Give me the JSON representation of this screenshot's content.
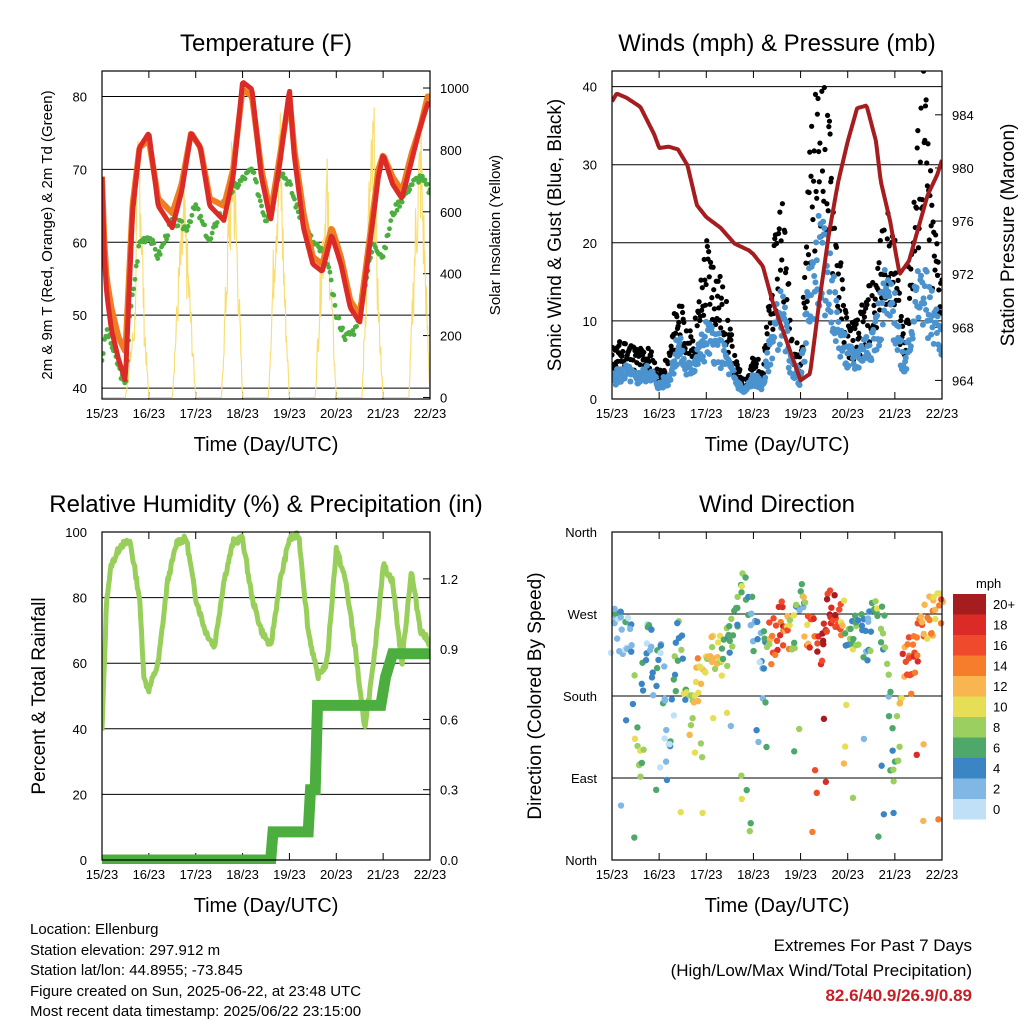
{
  "chart_data": [
    {
      "type": "line",
      "title": "Temperature (F)",
      "xlabel": "Time (Day/UTC)",
      "ylabel": "2m & 9m T (Red, Orange) & 2m Td (Green)",
      "y2label": "Solar Insolation (Yellow)",
      "x_ticks": [
        "15/23",
        "16/23",
        "17/23",
        "18/23",
        "19/23",
        "20/23",
        "21/23",
        "22/23"
      ],
      "ylim": [
        38.5,
        83.5
      ],
      "y_ticks": [
        40,
        50,
        60,
        70,
        80
      ],
      "y2lim": [
        -5,
        1055
      ],
      "y2_ticks": [
        0,
        200,
        400,
        600,
        800,
        1000
      ],
      "grid": true,
      "colors": {
        "t2m": "#dc2a27",
        "t9m": "#ef7d22",
        "td": "#4cae3e",
        "solar": "#f9dd6e"
      },
      "series": [
        {
          "key": "t9m",
          "x": [
            0,
            0.05,
            0.1,
            0.2,
            0.35,
            0.5,
            0.65,
            0.8,
            1,
            1.2,
            1.5,
            1.7,
            1.9,
            2.1,
            2.3,
            2.6,
            2.8,
            3,
            3.2,
            3.4,
            3.6,
            3.8,
            4,
            4.1,
            4.3,
            4.5,
            4.7,
            4.9,
            5.1,
            5.3,
            5.5,
            5.7,
            5.9,
            6,
            6.2,
            6.4,
            6.6,
            6.8,
            6.95,
            7
          ],
          "y": [
            69,
            60,
            55,
            51,
            47,
            45,
            65,
            73,
            74,
            66,
            64,
            68,
            75,
            73,
            66,
            65,
            70,
            81,
            80,
            70,
            64,
            72,
            80,
            73,
            64,
            58,
            57,
            62,
            58,
            52,
            50,
            60,
            70,
            72,
            69,
            67,
            72,
            76,
            80,
            80
          ]
        },
        {
          "key": "t2m",
          "x": [
            0,
            0.05,
            0.1,
            0.2,
            0.35,
            0.5,
            0.65,
            0.8,
            1,
            1.2,
            1.5,
            1.7,
            1.9,
            2.1,
            2.3,
            2.6,
            2.8,
            3,
            3.2,
            3.4,
            3.6,
            3.8,
            4,
            4.1,
            4.3,
            4.5,
            4.7,
            4.9,
            5.1,
            5.3,
            5.5,
            5.7,
            5.9,
            6,
            6.2,
            6.4,
            6.6,
            6.8,
            6.95,
            7
          ],
          "y": [
            69,
            58,
            53,
            48,
            44,
            41,
            64,
            73,
            75,
            65,
            62,
            67,
            75,
            73,
            65,
            63,
            69,
            82,
            81,
            69,
            63,
            71,
            81,
            72,
            62,
            57,
            56,
            61,
            57,
            51,
            49,
            59,
            69,
            72,
            68,
            66,
            71,
            76,
            79,
            79
          ]
        },
        {
          "key": "td",
          "x": [
            0,
            0.1,
            0.3,
            0.5,
            0.6,
            0.8,
            1,
            1.2,
            1.5,
            1.8,
            2,
            2.3,
            2.6,
            2.9,
            3.2,
            3.5,
            3.8,
            4,
            4.2,
            4.5,
            4.8,
            5,
            5.2,
            5.4,
            5.6,
            5.8,
            6,
            6.2,
            6.4,
            6.6,
            6.8,
            7
          ],
          "y": [
            44,
            48,
            44,
            40,
            50,
            60,
            61,
            58,
            63,
            62,
            65,
            60,
            66,
            68,
            70,
            63,
            70,
            68,
            64,
            60,
            58,
            50,
            47,
            48,
            54,
            60,
            58,
            64,
            66,
            68,
            69,
            67
          ]
        },
        {
          "key": "solar",
          "x": [
            0,
            0.2,
            0.5,
            0.7,
            0.75,
            0.8,
            0.9,
            1,
            1.3,
            1.5,
            1.65,
            1.75,
            1.85,
            2,
            2.3,
            2.55,
            2.7,
            2.8,
            2.9,
            3,
            3.3,
            3.55,
            3.7,
            3.8,
            3.9,
            4,
            4.3,
            4.55,
            4.7,
            4.8,
            4.9,
            5,
            5.3,
            5.55,
            5.7,
            5.8,
            5.9,
            6,
            6.3,
            6.55,
            6.7,
            6.8,
            6.9,
            7
          ],
          "y": [
            0,
            0,
            0,
            300,
            800,
            1000,
            300,
            0,
            0,
            0,
            500,
            700,
            450,
            0,
            0,
            0,
            650,
            950,
            500,
            0,
            0,
            0,
            700,
            1000,
            400,
            0,
            0,
            0,
            600,
            820,
            380,
            0,
            0,
            0,
            750,
            1000,
            350,
            0,
            0,
            0,
            700,
            950,
            500,
            0
          ]
        }
      ]
    },
    {
      "type": "scatter",
      "title": "Winds (mph) & Pressure (mb)",
      "xlabel": "Time (Day/UTC)",
      "ylabel": "Sonic Wind & Gust (Blue, Black)",
      "y2label": "Station Pressure (Maroon)",
      "x_ticks": [
        "15/23",
        "16/23",
        "17/23",
        "18/23",
        "19/23",
        "20/23",
        "21/23",
        "22/23"
      ],
      "ylim": [
        0,
        42
      ],
      "y_ticks": [
        0,
        10,
        20,
        30,
        40
      ],
      "y2lim": [
        962.6,
        987.3
      ],
      "y2_ticks": [
        964,
        968,
        972,
        976,
        980,
        984
      ],
      "grid": true,
      "colors": {
        "wind": "#4b93ce",
        "gust": "#000000",
        "pressure": "#a51d1f"
      },
      "series": [
        {
          "key": "wind",
          "x": [
            0,
            0.3,
            0.5,
            0.8,
            1,
            1.2,
            1.4,
            1.6,
            1.8,
            2,
            2.2,
            2.4,
            2.6,
            2.8,
            3,
            3.2,
            3.4,
            3.6,
            3.8,
            4,
            4.2,
            4.4,
            4.6,
            4.8,
            5,
            5.2,
            5.4,
            5.6,
            5.8,
            6,
            6.2,
            6.4,
            6.6,
            6.8,
            7
          ],
          "y": [
            3,
            4,
            3,
            4,
            2,
            3,
            8,
            4,
            6,
            9,
            8,
            6,
            3,
            1,
            3,
            2,
            9,
            13,
            5,
            3,
            16,
            21,
            18,
            10,
            6,
            6,
            8,
            10,
            15,
            12,
            5,
            13,
            16,
            12,
            9
          ]
        },
        {
          "key": "gust",
          "x": [
            0,
            0.3,
            0.5,
            0.8,
            1,
            1.2,
            1.4,
            1.6,
            1.8,
            2,
            2.2,
            2.4,
            2.6,
            2.8,
            3,
            3.2,
            3.4,
            3.6,
            3.8,
            4,
            4.2,
            4.4,
            4.6,
            4.8,
            5,
            5.2,
            5.4,
            5.6,
            5.8,
            6,
            6.2,
            6.4,
            6.6,
            6.8,
            7
          ],
          "y": [
            6,
            7,
            6,
            6,
            3,
            5,
            13,
            7,
            10,
            19,
            16,
            12,
            5,
            2,
            5,
            4,
            15,
            26,
            9,
            5,
            30,
            38,
            33,
            18,
            9,
            9,
            12,
            15,
            22,
            18,
            8,
            24,
            40,
            22,
            16
          ]
        },
        {
          "key": "pressure",
          "x": [
            0,
            0.1,
            0.3,
            0.6,
            0.9,
            1,
            1.2,
            1.4,
            1.6,
            1.8,
            2,
            2.3,
            2.6,
            2.9,
            3,
            3.2,
            3.4,
            3.6,
            3.8,
            4,
            4.2,
            4.4,
            4.6,
            4.8,
            5,
            5.2,
            5.4,
            5.6,
            5.7,
            5.9,
            6,
            6.1,
            6.3,
            6.5,
            6.7,
            6.9,
            7
          ],
          "y": [
            985,
            985.6,
            985.3,
            984.6,
            982.5,
            981.5,
            981.6,
            981.4,
            980.2,
            977.2,
            976.3,
            975.5,
            974.3,
            973.8,
            973.5,
            972.6,
            970,
            968,
            966,
            964,
            964.5,
            970,
            975,
            979,
            982,
            984.5,
            984.7,
            982,
            979,
            976,
            974,
            972,
            973,
            975.5,
            978,
            979.5,
            980.6
          ]
        }
      ]
    },
    {
      "type": "line",
      "title": "Relative Humidity (%) & Precipitation (in)",
      "xlabel": "Time (Day/UTC)",
      "ylabel": "Percent & Total Rainfall",
      "x_ticks": [
        "15/23",
        "16/23",
        "17/23",
        "18/23",
        "19/23",
        "20/23",
        "21/23",
        "22/23"
      ],
      "ylim": [
        0,
        100
      ],
      "y_ticks": [
        0,
        20,
        40,
        60,
        80,
        100
      ],
      "y2lim": [
        0,
        1.4
      ],
      "y2_ticks": [
        "0.0",
        "0.3",
        "0.6",
        "0.9",
        "1.2"
      ],
      "grid": true,
      "colors": {
        "rh": "#98cf5b",
        "precip": "#4cae3e"
      },
      "series": [
        {
          "key": "rh",
          "x": [
            0,
            0.1,
            0.2,
            0.4,
            0.6,
            0.8,
            0.9,
            1,
            1.2,
            1.4,
            1.6,
            1.8,
            2,
            2.2,
            2.4,
            2.6,
            2.8,
            3,
            3.2,
            3.4,
            3.6,
            3.8,
            4,
            4.2,
            4.4,
            4.6,
            4.8,
            5,
            5.2,
            5.4,
            5.6,
            5.8,
            6,
            6.2,
            6.4,
            6.6,
            6.8,
            7
          ],
          "y": [
            39,
            80,
            90,
            96,
            97,
            80,
            55,
            52,
            60,
            85,
            97,
            98,
            80,
            70,
            65,
            85,
            97,
            98,
            80,
            70,
            65,
            85,
            98,
            99,
            70,
            56,
            60,
            95,
            85,
            65,
            40,
            60,
            90,
            85,
            60,
            88,
            70,
            66
          ]
        },
        {
          "key": "precip",
          "x": [
            0,
            3.6,
            3.65,
            4.4,
            4.45,
            4.55,
            4.6,
            5.3,
            5.4,
            5.95,
            6.05,
            6.2,
            7
          ],
          "y": [
            0,
            0,
            0.12,
            0.12,
            0.3,
            0.3,
            0.66,
            0.66,
            0.66,
            0.66,
            0.78,
            0.88,
            0.88
          ]
        }
      ]
    },
    {
      "type": "scatter",
      "title": "Wind Direction",
      "xlabel": "Time (Day/UTC)",
      "ylabel": "Direction (Colored By Speed)",
      "x_ticks": [
        "15/23",
        "16/23",
        "17/23",
        "18/23",
        "19/23",
        "20/23",
        "21/23",
        "22/23"
      ],
      "y_tick_labels": [
        "North",
        "East",
        "South",
        "West",
        "North"
      ],
      "ylim": [
        0,
        360
      ],
      "grid": true,
      "legend": {
        "position": "right",
        "title": "mph",
        "labels": [
          "20+",
          "18",
          "16",
          "14",
          "12",
          "10",
          "8",
          "6",
          "4",
          "2",
          "0"
        ],
        "colors": [
          "#a51d1f",
          "#dc2a27",
          "#ef4a2b",
          "#f57d2c",
          "#f8b550",
          "#e6df55",
          "#9bd060",
          "#4ea86a",
          "#3c85c4",
          "#7fb8e4",
          "#bfe0f6"
        ]
      },
      "x": [
        0,
        0.2,
        0.4,
        0.5,
        0.6,
        0.7,
        0.8,
        0.9,
        1,
        1.2,
        1.4,
        1.6,
        1.8,
        2,
        2.2,
        2.4,
        2.6,
        2.8,
        3,
        3.2,
        3.4,
        3.6,
        3.8,
        4,
        4.2,
        4.4,
        4.6,
        4.8,
        5,
        5.2,
        5.4,
        5.6,
        5.8,
        6,
        6.2,
        6.4,
        6.6,
        6.8,
        7
      ],
      "direction": [
        250,
        255,
        240,
        170,
        90,
        240,
        260,
        180,
        250,
        100,
        260,
        160,
        200,
        210,
        230,
        220,
        260,
        300,
        250,
        230,
        240,
        260,
        240,
        280,
        250,
        230,
        280,
        270,
        260,
        250,
        240,
        270,
        250,
        90,
        230,
        220,
        260,
        270,
        280
      ],
      "speed": [
        3,
        4,
        3,
        8,
        10,
        3,
        5,
        6,
        4,
        3,
        7,
        9,
        13,
        10,
        12,
        8,
        6,
        8,
        5,
        4,
        15,
        18,
        12,
        5,
        16,
        19,
        20,
        18,
        6,
        8,
        4,
        9,
        6,
        7,
        16,
        18,
        14,
        12,
        14
      ]
    }
  ],
  "info": {
    "location": "Location: Ellenburg",
    "elevation": "Station elevation: 297.912 m",
    "latlon": "Station lat/lon: 44.8955; -73.845",
    "created": "Figure created on Sun, 2025-06-22, at 23:48 UTC",
    "recent": "Most recent data timestamp: 2025/06/22 23:15:00"
  },
  "extremes": {
    "line1": "Extremes For Past 7 Days",
    "line2": "(High/Low/Max Wind/Total Precipitation)",
    "values": "82.6/40.9/26.9/0.89"
  }
}
